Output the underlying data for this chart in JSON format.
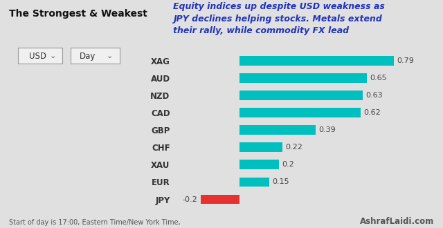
{
  "title_left": "The Strongest & Weakest",
  "subtitle": "Equity indices up despite USD weakness as\nJPY declines helping stocks. Metals extend\ntheir rally, while commodity FX lead",
  "dropdown1": "USD",
  "dropdown2": "Day",
  "categories": [
    "XAG",
    "AUD",
    "NZD",
    "CAD",
    "GBP",
    "CHF",
    "XAU",
    "EUR",
    "JPY"
  ],
  "values": [
    0.79,
    0.65,
    0.63,
    0.62,
    0.39,
    0.22,
    0.2,
    0.15,
    -0.2
  ],
  "bar_color_positive": "#00BFBF",
  "bar_color_negative": "#E83030",
  "background_color": "#e0e0e0",
  "footer_left": "Start of day is 17:00, Eastern Time/New York Time,",
  "footer_right": "AshrafLaidi.com",
  "subtitle_color": "#2233bb",
  "title_color": "#111111",
  "footer_color": "#555555",
  "label_color": "#333333"
}
